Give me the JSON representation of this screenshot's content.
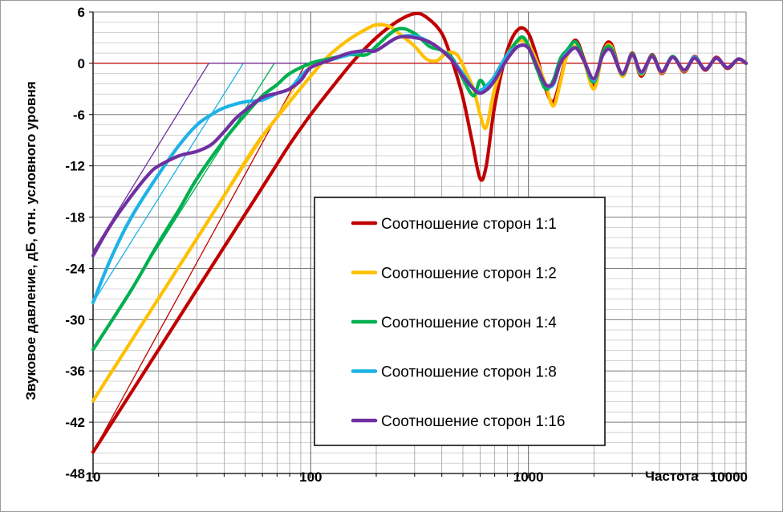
{
  "chart_data": {
    "type": "line",
    "title": "",
    "ylabel": "Звуковое давление, дБ, отн. условного уровня",
    "xlabel": "Частота",
    "xscale": "log",
    "xlim": [
      10,
      10000
    ],
    "ylim": [
      -48,
      6
    ],
    "x_ticks": [
      "10",
      "100",
      "1000",
      "10000"
    ],
    "y_ticks": [
      "6",
      "0",
      "-6",
      "-12",
      "-18",
      "-24",
      "-30",
      "-36",
      "-42",
      "-48"
    ],
    "grid": true,
    "legend_position": "center",
    "reference_line": {
      "y": 0,
      "color": "#c00000"
    },
    "series": [
      {
        "name": "Соотношение сторон 1:1",
        "color": "#c00000",
        "points": [
          [
            10,
            -45.5
          ],
          [
            20,
            -33.5
          ],
          [
            40,
            -21.5
          ],
          [
            60,
            -14.5
          ],
          [
            80,
            -9.5
          ],
          [
            100,
            -6
          ],
          [
            130,
            -2.3
          ],
          [
            160,
            0.5
          ],
          [
            200,
            3
          ],
          [
            250,
            4.9
          ],
          [
            300,
            5.8
          ],
          [
            340,
            5.4
          ],
          [
            400,
            3.5
          ],
          [
            450,
            0
          ],
          [
            500,
            -4
          ],
          [
            550,
            -9
          ],
          [
            600,
            -13.5
          ],
          [
            640,
            -12
          ],
          [
            700,
            -5
          ],
          [
            800,
            1.5
          ],
          [
            900,
            4
          ],
          [
            1000,
            3.5
          ],
          [
            1100,
            0.5
          ],
          [
            1200,
            -3
          ],
          [
            1300,
            -4.5
          ],
          [
            1400,
            -2
          ],
          [
            1500,
            1
          ],
          [
            1650,
            2.7
          ],
          [
            1800,
            0.5
          ],
          [
            2000,
            -2.5
          ],
          [
            2200,
            1.5
          ],
          [
            2400,
            2.3
          ],
          [
            2700,
            -1.5
          ],
          [
            3000,
            1.2
          ],
          [
            3300,
            -1.5
          ],
          [
            3700,
            1
          ],
          [
            4100,
            -1.2
          ],
          [
            4600,
            0.8
          ],
          [
            5200,
            -1
          ],
          [
            5800,
            0.8
          ],
          [
            6500,
            -0.8
          ],
          [
            7300,
            0.7
          ],
          [
            8200,
            -0.6
          ],
          [
            9200,
            0.5
          ],
          [
            10000,
            0
          ]
        ]
      },
      {
        "name": "Соотношение сторон 1:2",
        "color": "#ffc000",
        "points": [
          [
            10,
            -39.5
          ],
          [
            20,
            -27.5
          ],
          [
            30,
            -20.5
          ],
          [
            40,
            -15.5
          ],
          [
            50,
            -11.5
          ],
          [
            60,
            -8.5
          ],
          [
            80,
            -4.5
          ],
          [
            100,
            -1.5
          ],
          [
            120,
            0.8
          ],
          [
            150,
            2.8
          ],
          [
            180,
            4
          ],
          [
            200,
            4.5
          ],
          [
            230,
            4.3
          ],
          [
            260,
            3.3
          ],
          [
            300,
            2
          ],
          [
            340,
            0.5
          ],
          [
            380,
            0.3
          ],
          [
            420,
            1.2
          ],
          [
            470,
            1
          ],
          [
            520,
            -1.2
          ],
          [
            560,
            -3
          ],
          [
            600,
            -6
          ],
          [
            640,
            -7.5
          ],
          [
            700,
            -3
          ],
          [
            800,
            1
          ],
          [
            900,
            2.6
          ],
          [
            1000,
            2.2
          ],
          [
            1100,
            0
          ],
          [
            1200,
            -2.5
          ],
          [
            1300,
            -5
          ],
          [
            1400,
            -2.3
          ],
          [
            1500,
            0.8
          ],
          [
            1650,
            2
          ],
          [
            1800,
            0.3
          ],
          [
            2000,
            -3
          ],
          [
            2200,
            1.2
          ],
          [
            2400,
            2
          ],
          [
            2700,
            -1.5
          ],
          [
            3000,
            1
          ],
          [
            3300,
            -1.3
          ],
          [
            3700,
            0.9
          ],
          [
            4100,
            -1.1
          ],
          [
            4600,
            0.8
          ],
          [
            5200,
            -0.9
          ],
          [
            5800,
            0.7
          ],
          [
            6500,
            -0.7
          ],
          [
            7300,
            0.6
          ],
          [
            8200,
            -0.5
          ],
          [
            9200,
            0.5
          ],
          [
            10000,
            0
          ]
        ]
      },
      {
        "name": "Соотношение сторон 1:4",
        "color": "#00b050",
        "points": [
          [
            10,
            -33.5
          ],
          [
            15,
            -26.5
          ],
          [
            20,
            -21
          ],
          [
            25,
            -17
          ],
          [
            30,
            -13.5
          ],
          [
            40,
            -9
          ],
          [
            50,
            -6
          ],
          [
            60,
            -3.8
          ],
          [
            70,
            -2.5
          ],
          [
            80,
            -1.2
          ],
          [
            100,
            0
          ],
          [
            120,
            0.5
          ],
          [
            150,
            1
          ],
          [
            180,
            1
          ],
          [
            200,
            2
          ],
          [
            250,
            4
          ],
          [
            300,
            3.5
          ],
          [
            350,
            2
          ],
          [
            400,
            1.5
          ],
          [
            450,
            0.5
          ],
          [
            500,
            -1.8
          ],
          [
            560,
            -3.8
          ],
          [
            600,
            -2
          ],
          [
            650,
            -3
          ],
          [
            700,
            -1.5
          ],
          [
            800,
            1
          ],
          [
            900,
            2.8
          ],
          [
            950,
            3
          ],
          [
            1000,
            2
          ],
          [
            1100,
            -0.8
          ],
          [
            1200,
            -3
          ],
          [
            1300,
            -2
          ],
          [
            1400,
            0.5
          ],
          [
            1500,
            1.5
          ],
          [
            1650,
            2.5
          ],
          [
            1800,
            0.3
          ],
          [
            2000,
            -2.2
          ],
          [
            2200,
            1.3
          ],
          [
            2400,
            1.8
          ],
          [
            2700,
            -1.3
          ],
          [
            3000,
            1.1
          ],
          [
            3300,
            -1.2
          ],
          [
            3700,
            0.9
          ],
          [
            4100,
            -1
          ],
          [
            4600,
            0.8
          ],
          [
            5200,
            -0.8
          ],
          [
            5800,
            0.7
          ],
          [
            6500,
            -0.7
          ],
          [
            7300,
            0.6
          ],
          [
            8200,
            -0.5
          ],
          [
            9200,
            0.5
          ],
          [
            10000,
            0
          ]
        ]
      },
      {
        "name": "Соотношение сторон 1:8",
        "color": "#1fb2e6",
        "points": [
          [
            10,
            -28
          ],
          [
            12,
            -23
          ],
          [
            15,
            -18
          ],
          [
            20,
            -13
          ],
          [
            25,
            -9.5
          ],
          [
            30,
            -7.2
          ],
          [
            35,
            -6
          ],
          [
            40,
            -5.2
          ],
          [
            50,
            -4.5
          ],
          [
            60,
            -4.3
          ],
          [
            70,
            -3.5
          ],
          [
            80,
            -3
          ],
          [
            90,
            -1.5
          ],
          [
            100,
            -0.5
          ],
          [
            120,
            0.3
          ],
          [
            150,
            1
          ],
          [
            180,
            1.5
          ],
          [
            200,
            1.5
          ],
          [
            250,
            3
          ],
          [
            300,
            3.2
          ],
          [
            350,
            2.5
          ],
          [
            400,
            1.5
          ],
          [
            450,
            0.3
          ],
          [
            500,
            -1.2
          ],
          [
            560,
            -3
          ],
          [
            600,
            -3.2
          ],
          [
            650,
            -2.5
          ],
          [
            700,
            -1.5
          ],
          [
            800,
            1
          ],
          [
            900,
            2
          ],
          [
            1000,
            1.8
          ],
          [
            1100,
            -0.5
          ],
          [
            1200,
            -2.5
          ],
          [
            1300,
            -2.5
          ],
          [
            1400,
            0
          ],
          [
            1500,
            1.2
          ],
          [
            1650,
            1.8
          ],
          [
            1800,
            0.3
          ],
          [
            2000,
            -2
          ],
          [
            2200,
            1
          ],
          [
            2400,
            1.5
          ],
          [
            2700,
            -1.2
          ],
          [
            3000,
            1
          ],
          [
            3300,
            -1.1
          ],
          [
            3700,
            0.8
          ],
          [
            4100,
            -1
          ],
          [
            4600,
            0.7
          ],
          [
            5200,
            -0.8
          ],
          [
            5800,
            0.7
          ],
          [
            6500,
            -0.7
          ],
          [
            7300,
            0.6
          ],
          [
            8200,
            -0.5
          ],
          [
            9200,
            0.5
          ],
          [
            10000,
            0
          ]
        ]
      },
      {
        "name": "Соотношение сторон 1:16",
        "color": "#7030a0",
        "points": [
          [
            10,
            -22.5
          ],
          [
            12,
            -19
          ],
          [
            15,
            -15.5
          ],
          [
            18,
            -13
          ],
          [
            20,
            -12
          ],
          [
            25,
            -10.8
          ],
          [
            30,
            -10.3
          ],
          [
            35,
            -9.5
          ],
          [
            40,
            -8
          ],
          [
            45,
            -6.5
          ],
          [
            50,
            -5.5
          ],
          [
            60,
            -4
          ],
          [
            70,
            -3.5
          ],
          [
            80,
            -3
          ],
          [
            90,
            -2
          ],
          [
            100,
            -0.5
          ],
          [
            120,
            0.3
          ],
          [
            150,
            1.2
          ],
          [
            180,
            1.5
          ],
          [
            200,
            1.5
          ],
          [
            250,
            3
          ],
          [
            300,
            3
          ],
          [
            350,
            2.5
          ],
          [
            400,
            1.5
          ],
          [
            450,
            0.2
          ],
          [
            500,
            -1.5
          ],
          [
            560,
            -3
          ],
          [
            600,
            -3.5
          ],
          [
            650,
            -3
          ],
          [
            700,
            -2
          ],
          [
            800,
            0.5
          ],
          [
            900,
            2
          ],
          [
            1000,
            1.8
          ],
          [
            1100,
            -0.5
          ],
          [
            1200,
            -2.5
          ],
          [
            1300,
            -2.3
          ],
          [
            1400,
            0
          ],
          [
            1500,
            1
          ],
          [
            1650,
            1.8
          ],
          [
            1800,
            0.3
          ],
          [
            2000,
            -1.8
          ],
          [
            2200,
            1
          ],
          [
            2400,
            1.5
          ],
          [
            2700,
            -1.2
          ],
          [
            3000,
            1
          ],
          [
            3300,
            -1
          ],
          [
            3700,
            0.8
          ],
          [
            4100,
            -1
          ],
          [
            4600,
            0.7
          ],
          [
            5200,
            -0.8
          ],
          [
            5800,
            0.6
          ],
          [
            6500,
            -0.7
          ],
          [
            7300,
            0.6
          ],
          [
            8200,
            -0.5
          ],
          [
            9200,
            0.5
          ],
          [
            10000,
            0
          ]
        ]
      }
    ],
    "asymptotes": [
      {
        "color": "#c00000",
        "points": [
          [
            10,
            -45.5
          ],
          [
            95,
            0
          ]
        ]
      },
      {
        "color": "#ffc000",
        "points": [
          [
            10,
            -39.5
          ],
          [
            100,
            0
          ]
        ]
      },
      {
        "color": "#00b050",
        "points": [
          [
            10,
            -33.5
          ],
          [
            68,
            0
          ]
        ]
      },
      {
        "color": "#1fb2e6",
        "points": [
          [
            10,
            -28
          ],
          [
            49,
            0
          ]
        ]
      },
      {
        "color": "#7030a0",
        "points": [
          [
            10,
            -22
          ],
          [
            34,
            0
          ],
          [
            100,
            0
          ]
        ]
      }
    ]
  }
}
